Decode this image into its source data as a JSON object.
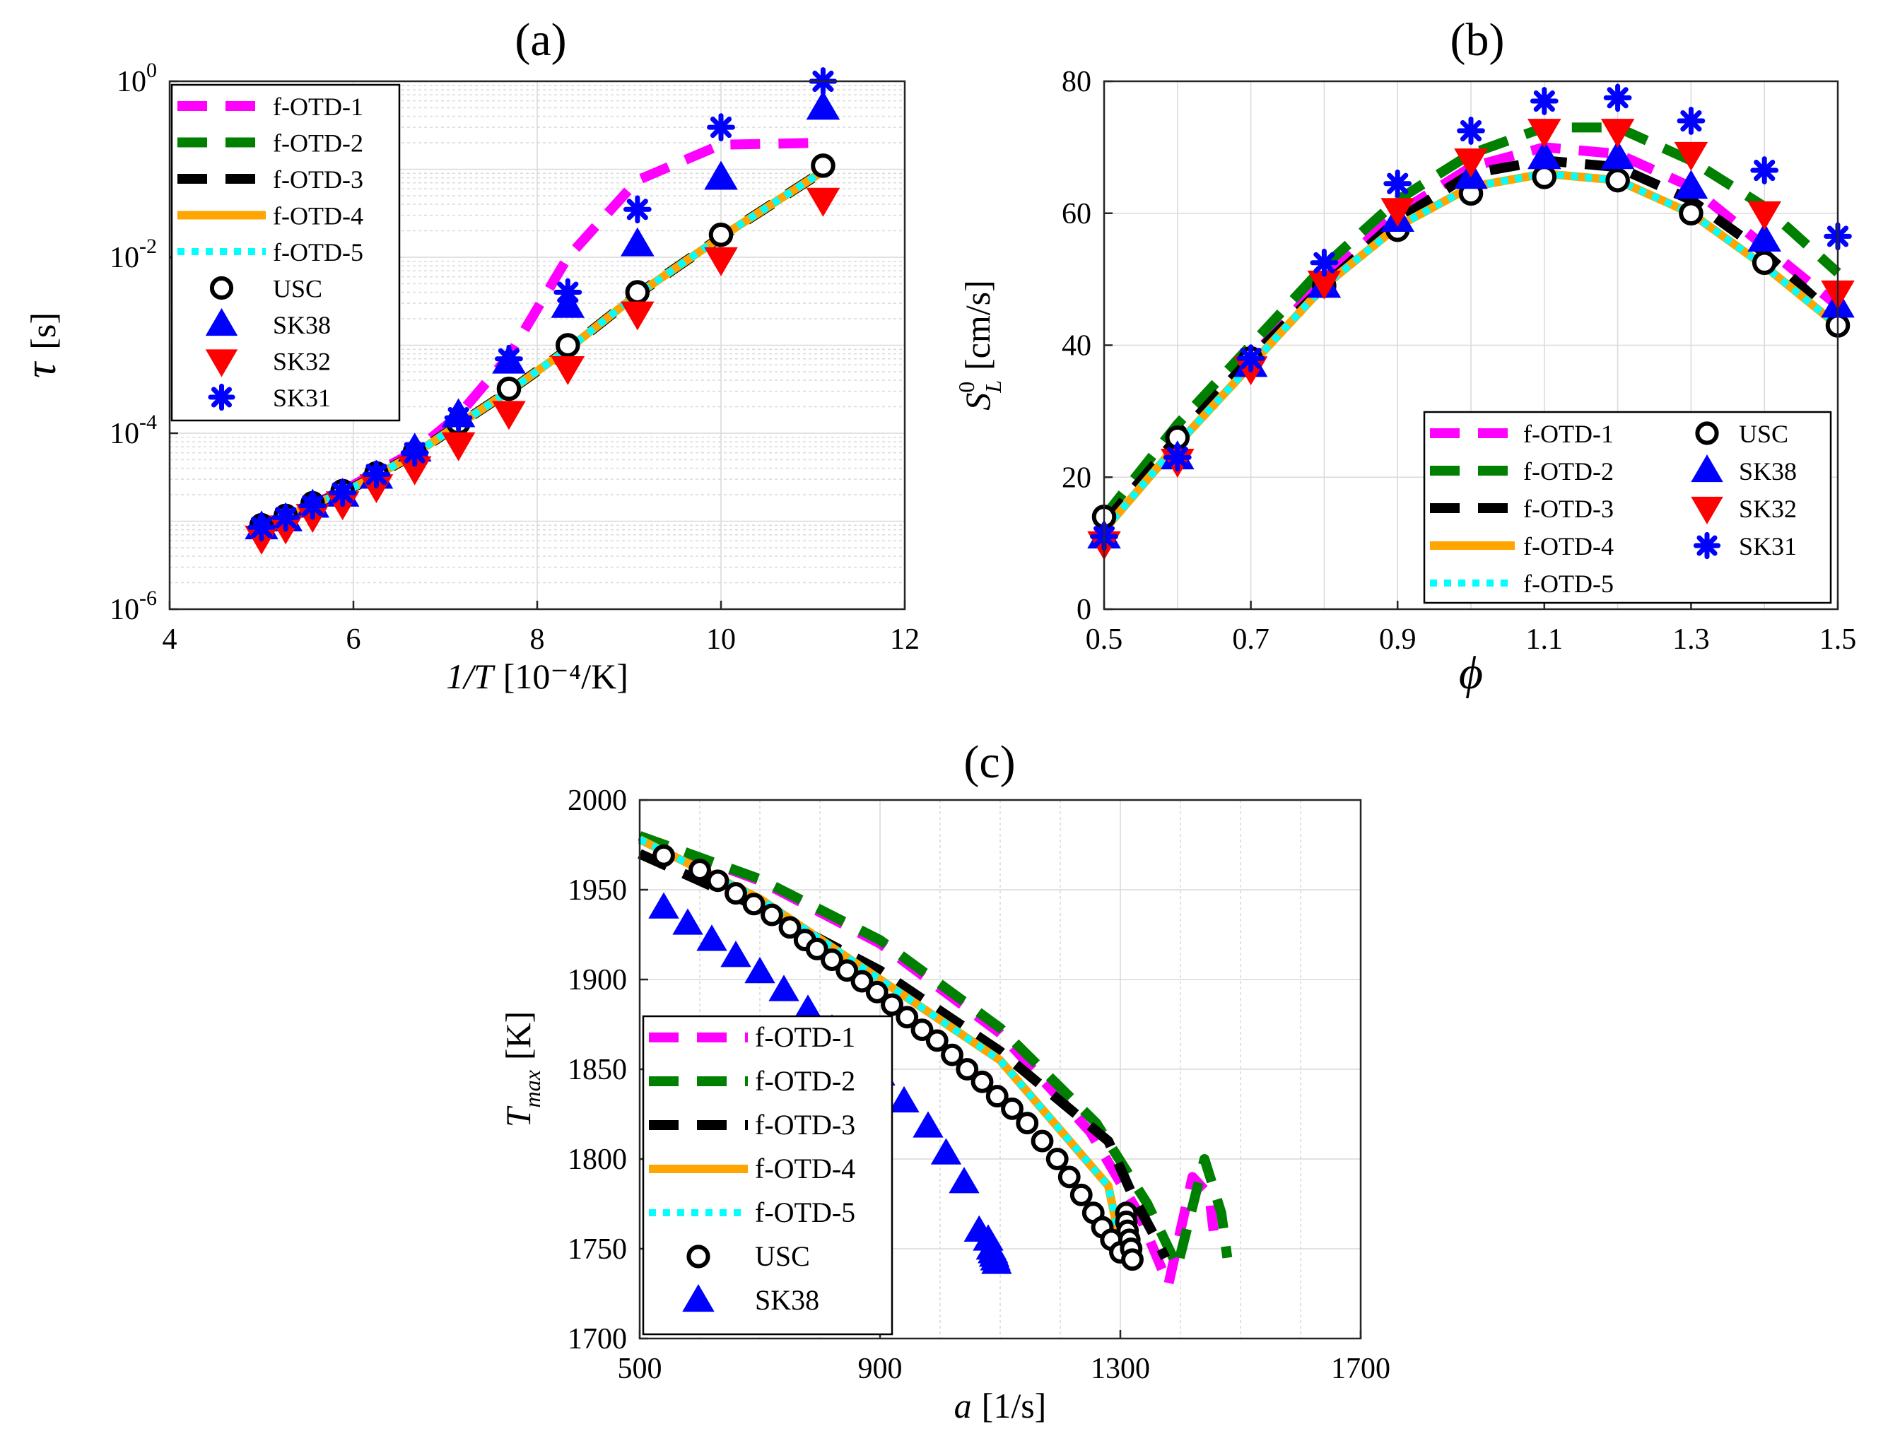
{
  "figure": {
    "colors": {
      "f-OTD-1": "#ff00ff",
      "f-OTD-2": "#008000",
      "f-OTD-3": "#000000",
      "f-OTD-4": "#ffa500",
      "f-OTD-5": "#00ffff",
      "USC": "#000000",
      "SK38": "#0000ff",
      "SK32": "#ff0000",
      "SK31": "#0000ff"
    }
  },
  "chart_data": [
    {
      "id": "a",
      "type": "line",
      "title": "(a)",
      "xlabel_text": "1/T",
      "xlabel_unit": "[10⁻⁴/K]",
      "ylabel_text": "τ",
      "ylabel_unit": "[s]",
      "xlim": [
        4,
        12
      ],
      "ylim_log10": [
        -6,
        0
      ],
      "yscale": "log",
      "x_ticks": [
        "4",
        "6",
        "8",
        "10",
        "12"
      ],
      "y_tick_bases": [
        "10",
        "10",
        "10",
        "10"
      ],
      "y_tick_exps": [
        "-6",
        "-4",
        "-2",
        "0"
      ],
      "grid": true,
      "legend_position": "top-left",
      "legend": [
        "f-OTD-1",
        "f-OTD-2",
        "f-OTD-3",
        "f-OTD-4",
        "f-OTD-5",
        "USC",
        "SK38",
        "SK32",
        "SK31"
      ],
      "x": [
        5.0,
        5.263,
        5.556,
        5.882,
        6.25,
        6.667,
        7.143,
        7.692,
        8.333,
        9.091,
        10.0,
        11.111
      ],
      "series": [
        {
          "name": "f-OTD-1",
          "style": "dash",
          "values": [
            8.5e-06,
            1.1e-05,
            1.55e-05,
            2.2e-05,
            3.6e-05,
            6.2e-05,
            0.00016,
            0.00075,
            0.01,
            0.075,
            0.19,
            0.2
          ]
        },
        {
          "name": "f-OTD-2",
          "style": "dash",
          "values": [
            8.5e-06,
            1.1e-05,
            1.55e-05,
            2.1e-05,
            3.3e-05,
            5.8e-05,
            0.000125,
            0.0003,
            0.0009,
            0.0038,
            0.017,
            0.095
          ]
        },
        {
          "name": "f-OTD-3",
          "style": "dash",
          "values": [
            8.5e-06,
            1.1e-05,
            1.55e-05,
            2.1e-05,
            3.3e-05,
            5.8e-05,
            0.000125,
            0.0003,
            0.0009,
            0.0038,
            0.017,
            0.095
          ]
        },
        {
          "name": "f-OTD-4",
          "style": "solid",
          "values": [
            8.5e-06,
            1.1e-05,
            1.55e-05,
            2.1e-05,
            3.3e-05,
            5.8e-05,
            0.000125,
            0.0003,
            0.0009,
            0.0038,
            0.017,
            0.095
          ]
        },
        {
          "name": "f-OTD-5",
          "style": "dot",
          "values": [
            8.5e-06,
            1.1e-05,
            1.55e-05,
            2.1e-05,
            3.3e-05,
            5.8e-05,
            0.000125,
            0.0003,
            0.0009,
            0.0038,
            0.017,
            0.095
          ]
        },
        {
          "name": "USC",
          "marker": "circle",
          "values": [
            9e-06,
            1.15e-05,
            1.6e-05,
            2.2e-05,
            3.5e-05,
            6e-05,
            0.00013,
            0.00032,
            0.001,
            0.004,
            0.018,
            0.11
          ]
        },
        {
          "name": "SK38",
          "marker": "triangle-up",
          "values": [
            8.5e-06,
            1.05e-05,
            1.5e-05,
            2e-05,
            3.2e-05,
            6.5e-05,
            0.00016,
            0.00065,
            0.0028,
            0.014,
            0.08,
            0.5
          ]
        },
        {
          "name": "SK32",
          "marker": "triangle-down",
          "values": [
            6.5e-06,
            8.5e-06,
            1.15e-05,
            1.6e-05,
            2.5e-05,
            4e-05,
            7.5e-05,
            0.00017,
            0.00055,
            0.0023,
            0.0095,
            0.045
          ]
        },
        {
          "name": "SK31",
          "marker": "asterisk",
          "values": [
            8.5e-06,
            1.1e-05,
            1.5e-05,
            2.1e-05,
            3.4e-05,
            6e-05,
            0.00015,
            0.0007,
            0.004,
            0.035,
            0.3,
            1.0
          ]
        }
      ]
    },
    {
      "id": "b",
      "type": "line",
      "title": "(b)",
      "xlabel_text": "ϕ",
      "ylabel_text": "S",
      "ylabel_sup": "0",
      "ylabel_sub": "L",
      "ylabel_unit": "[cm/s]",
      "xlim": [
        0.5,
        1.5
      ],
      "ylim": [
        0,
        80
      ],
      "x_ticks": [
        "0.5",
        "0.7",
        "0.9",
        "1.1",
        "1.3",
        "1.5"
      ],
      "x_minor_ticks": [
        0.6,
        0.8,
        1.0,
        1.2,
        1.4
      ],
      "y_ticks": [
        "0",
        "20",
        "40",
        "60",
        "80"
      ],
      "grid": true,
      "legend_position": "bottom-right",
      "legend": [
        "f-OTD-1",
        "f-OTD-2",
        "f-OTD-3",
        "f-OTD-4",
        "f-OTD-5",
        "USC",
        "SK38",
        "SK32",
        "SK31"
      ],
      "x": [
        0.5,
        0.6,
        0.7,
        0.8,
        0.9,
        1.0,
        1.1,
        1.2,
        1.3,
        1.4,
        1.5
      ],
      "series": [
        {
          "name": "f-OTD-1",
          "style": "dash",
          "values": [
            13,
            26,
            38,
            50,
            60,
            67,
            70,
            69,
            64,
            55,
            46
          ]
        },
        {
          "name": "f-OTD-2",
          "style": "dash",
          "values": [
            14,
            28,
            40,
            52,
            62,
            69,
            73,
            73,
            68,
            61,
            51
          ]
        },
        {
          "name": "f-OTD-3",
          "style": "dash",
          "values": [
            13,
            26,
            38,
            49,
            59,
            66,
            68,
            67,
            62,
            54,
            44
          ]
        },
        {
          "name": "f-OTD-4",
          "style": "solid",
          "values": [
            12,
            25,
            37,
            49,
            58,
            64,
            66,
            65,
            60,
            52,
            43
          ]
        },
        {
          "name": "f-OTD-5",
          "style": "dot",
          "values": [
            12,
            25,
            37,
            49,
            58,
            64,
            66,
            65,
            60,
            52,
            43
          ]
        },
        {
          "name": "USC",
          "marker": "circle",
          "values": [
            14,
            26,
            38,
            49,
            57.5,
            63,
            65.5,
            65,
            60,
            52.5,
            43
          ]
        },
        {
          "name": "SK38",
          "marker": "triangle-up",
          "values": [
            11,
            23,
            37,
            49,
            59,
            65.5,
            68.5,
            68.5,
            64,
            56,
            46
          ]
        },
        {
          "name": "SK32",
          "marker": "triangle-down",
          "values": [
            10,
            22.5,
            36.5,
            49.5,
            60.5,
            68,
            72.5,
            72.5,
            69,
            60,
            48
          ]
        },
        {
          "name": "SK31",
          "marker": "asterisk",
          "values": [
            11,
            23,
            38,
            52.5,
            64.5,
            72.5,
            77,
            77.5,
            74,
            66.5,
            56.5
          ]
        }
      ]
    },
    {
      "id": "c",
      "type": "line",
      "title": "(c)",
      "xlabel_text": "a",
      "xlabel_unit": "[1/s]",
      "ylabel_text": "T",
      "ylabel_sub": "max",
      "ylabel_unit": "[K]",
      "xlim": [
        500,
        1700
      ],
      "ylim": [
        1700,
        2000
      ],
      "x_ticks": [
        "500",
        "900",
        "1300",
        "1700"
      ],
      "x_minor_ticks": [
        600,
        700,
        800,
        1000,
        1100,
        1200,
        1400,
        1500,
        1600
      ],
      "y_ticks": [
        "1700",
        "1750",
        "1800",
        "1850",
        "1900",
        "1950",
        "2000"
      ],
      "grid": true,
      "legend_position": "bottom-left",
      "legend": [
        "f-OTD-1",
        "f-OTD-2",
        "f-OTD-3",
        "f-OTD-4",
        "f-OTD-5",
        "USC",
        "SK38"
      ],
      "series": [
        {
          "name": "f-OTD-1",
          "style": "dash",
          "x": [
            500,
            700,
            900,
            1100,
            1250,
            1330,
            1380,
            1420,
            1448,
            1455
          ],
          "values": [
            1980,
            1955,
            1920,
            1870,
            1815,
            1770,
            1730,
            1790,
            1780,
            1760
          ]
        },
        {
          "name": "f-OTD-2",
          "style": "dash",
          "x": [
            500,
            700,
            900,
            1100,
            1260,
            1345,
            1395,
            1440,
            1468,
            1478
          ],
          "values": [
            1980,
            1956,
            1922,
            1873,
            1820,
            1775,
            1740,
            1800,
            1770,
            1745
          ]
        },
        {
          "name": "f-OTD-3",
          "style": "dash",
          "x": [
            500,
            700,
            900,
            1100,
            1280,
            1320,
            1360,
            1375
          ],
          "values": [
            1970,
            1940,
            1905,
            1860,
            1810,
            1780,
            1755,
            1745
          ]
        },
        {
          "name": "f-OTD-4",
          "style": "solid",
          "x": [
            500,
            700,
            900,
            1100,
            1280,
            1305
          ],
          "values": [
            1978,
            1945,
            1900,
            1855,
            1785,
            1745
          ]
        },
        {
          "name": "f-OTD-5",
          "style": "dot",
          "x": [
            500,
            700,
            900,
            1100,
            1280,
            1305
          ],
          "values": [
            1978,
            1945,
            1900,
            1855,
            1785,
            1745
          ]
        },
        {
          "name": "USC",
          "marker": "circle",
          "x": [
            540,
            600,
            630,
            660,
            690,
            720,
            750,
            775,
            795,
            820,
            845,
            870,
            895,
            920,
            945,
            970,
            995,
            1020,
            1045,
            1070,
            1095,
            1120,
            1145,
            1170,
            1195,
            1215,
            1235,
            1255,
            1270,
            1285,
            1300,
            1310,
            1310,
            1312,
            1315,
            1318,
            1320
          ],
          "values": [
            1969,
            1961,
            1955,
            1948,
            1942,
            1936,
            1929,
            1922,
            1917,
            1911,
            1905,
            1899,
            1893,
            1886,
            1879,
            1872,
            1866,
            1858,
            1850,
            1843,
            1835,
            1828,
            1820,
            1810,
            1800,
            1790,
            1780,
            1770,
            1762,
            1755,
            1748,
            1770,
            1765,
            1760,
            1755,
            1750,
            1744
          ]
        },
        {
          "name": "SK38",
          "marker": "triangle-up",
          "x": [
            540,
            580,
            620,
            660,
            700,
            740,
            780,
            820,
            860,
            900,
            940,
            980,
            1010,
            1040,
            1065,
            1080,
            1085,
            1088,
            1090,
            1092,
            1094
          ],
          "values": [
            1940,
            1931,
            1922,
            1913,
            1904,
            1894,
            1883,
            1872,
            1860,
            1847,
            1832,
            1818,
            1803,
            1787,
            1760,
            1755,
            1750,
            1748,
            1746,
            1744,
            1742
          ]
        }
      ]
    }
  ]
}
